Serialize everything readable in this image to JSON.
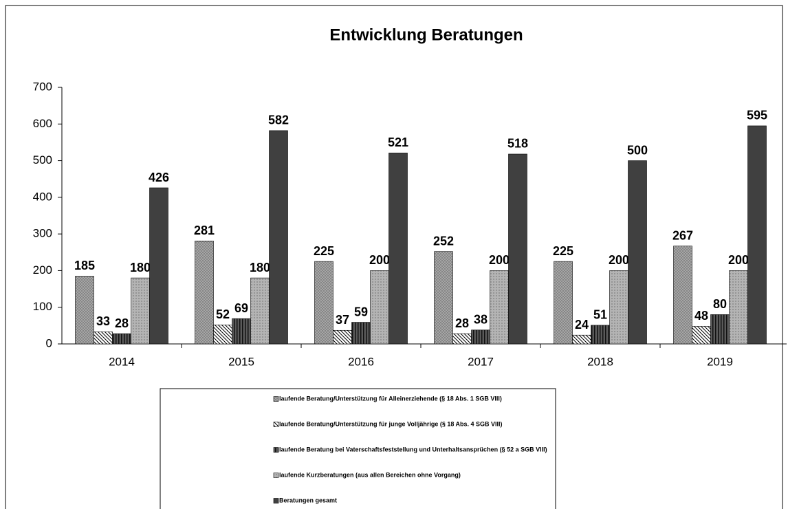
{
  "chart_data": {
    "type": "bar",
    "title": "Entwicklung Beratungen",
    "categories": [
      "2014",
      "2015",
      "2016",
      "2017",
      "2018",
      "2019"
    ],
    "series": [
      {
        "name": "laufende Beratung/Unterstützung für Alleinerziehende (§ 18 Abs. 1 SGB VIII)",
        "color": "#a6a6a6",
        "values": [
          185,
          281,
          225,
          252,
          225,
          267
        ]
      },
      {
        "name": "laufende Beratung/Unterstützung für junge Volljährige (§ 18 Abs. 4 SGB VIII)",
        "color": "#ffffff",
        "values": [
          33,
          52,
          37,
          28,
          24,
          48
        ]
      },
      {
        "name": "laufende Beratung bei Vaterschaftsfeststellung und Unterhaltsansprüchen (§ 52 a SGB VIII)",
        "color": "#5a5a5a",
        "values": [
          28,
          69,
          59,
          38,
          51,
          80
        ]
      },
      {
        "name": "laufende Kurzberatungen (aus allen Bereichen ohne Vorgang)",
        "color": "#b4b4b4",
        "values": [
          180,
          180,
          200,
          200,
          200,
          200
        ]
      },
      {
        "name": "Beratungen gesamt",
        "color": "#404040",
        "values": [
          426,
          582,
          521,
          518,
          500,
          595
        ]
      }
    ],
    "ylim": [
      0,
      700
    ],
    "yticks": [
      0,
      100,
      200,
      300,
      400,
      500,
      600,
      700
    ]
  }
}
